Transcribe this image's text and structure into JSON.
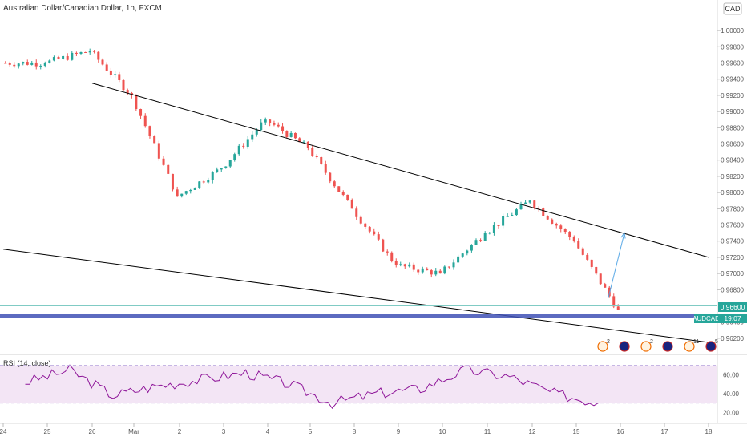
{
  "header": {
    "symbol_title": "Australian Dollar/Canadian Dollar, 1h, FXCM",
    "currency_badge": "CAD"
  },
  "price_axis": {
    "ticks": [
      "1.00000",
      "0.99800",
      "0.99600",
      "0.99400",
      "0.99200",
      "0.99000",
      "0.98800",
      "0.98600",
      "0.98400",
      "0.98200",
      "0.98000",
      "0.97800",
      "0.97600",
      "0.97400",
      "0.97200",
      "0.97000",
      "0.96800",
      "0.96400",
      "0.96200"
    ],
    "last_price_label": "0.96600",
    "symbol_tag": "AUDCAD",
    "countdown": "19:07"
  },
  "time_axis": {
    "ticks": [
      "24",
      "25",
      "26",
      "Mar",
      "2",
      "3",
      "4",
      "5",
      "8",
      "9",
      "10",
      "11",
      "12",
      "15",
      "16",
      "17",
      "18"
    ]
  },
  "rsi_pane": {
    "title": "RSI (14, close)",
    "ticks": [
      "60.00",
      "40.00",
      "20.00"
    ],
    "upper_band": 70,
    "lower_band": 30,
    "ylim": [
      10,
      80
    ]
  },
  "event_markers": [
    {
      "icon": "calendar-event-icon",
      "count": "2"
    },
    {
      "icon": "australia-flag-icon",
      "count": ""
    },
    {
      "icon": "calendar-event-icon",
      "count": "2"
    },
    {
      "icon": "australia-flag-icon",
      "count": ""
    },
    {
      "icon": "calendar-event-icon",
      "count": "11"
    },
    {
      "icon": "australia-flag-icon",
      "count": "5"
    }
  ],
  "colors": {
    "up": "#26a69a",
    "down": "#ef5350",
    "rsi_line": "#8e1599",
    "rsi_fill": "#f3e5f5",
    "support_zone": "#3f51b5",
    "arrow": "#5aa9e6",
    "trendline": "#000000"
  },
  "chart_data": [
    {
      "type": "candlestick",
      "xlabel": "",
      "ylabel": "",
      "ylim": [
        0.961,
        1.001
      ],
      "x": [
        "24",
        "25",
        "26",
        "Mar",
        "2",
        "3",
        "4",
        "5",
        "8",
        "9",
        "10",
        "11",
        "12",
        "15"
      ],
      "close": [
        0.996,
        0.9975,
        0.992,
        0.9795,
        0.983,
        0.989,
        0.9855,
        0.978,
        0.971,
        0.97,
        0.975,
        0.979,
        0.974,
        0.9655
      ],
      "annotations": [
        {
          "type": "trendline",
          "from": [
            "26",
            0.9935
          ],
          "to": [
            "18",
            0.972
          ]
        },
        {
          "type": "trendline",
          "from": [
            "24",
            0.973
          ],
          "to": [
            "18",
            0.9615
          ]
        },
        {
          "type": "arrow",
          "from": [
            "15",
            0.967
          ],
          "to": [
            "16",
            0.975
          ]
        },
        {
          "type": "zone",
          "from": 0.9645,
          "to": 0.965
        }
      ]
    },
    {
      "type": "line",
      "name": "RSI (14, close)",
      "ylim": [
        10,
        80
      ],
      "x": [
        "24",
        "25",
        "26",
        "Mar",
        "2",
        "3",
        "4",
        "5",
        "8",
        "9",
        "10",
        "11",
        "12",
        "15"
      ],
      "values": [
        52,
        65,
        38,
        48,
        55,
        62,
        50,
        30,
        40,
        45,
        65,
        58,
        40,
        30
      ]
    }
  ]
}
